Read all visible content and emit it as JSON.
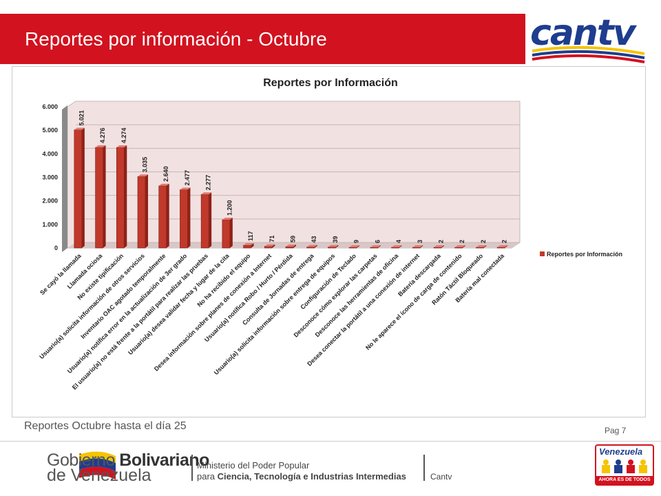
{
  "slide": {
    "title": "Reportes por información - Octubre",
    "footnote": "Reportes Octubre hasta el día 25",
    "page": "Pag 7"
  },
  "logo": {
    "text": "cantv"
  },
  "footer": {
    "gob_line1_a": "Gobierno ",
    "gob_line1_b": "Bolivariano",
    "gob_line2": "de Venezuela",
    "ministry_line1": "Ministerio del Poder Popular",
    "ministry_line2_a": "para ",
    "ministry_line2_b": "Ciencia, Tecnología e Industrias Intermedias",
    "cantv": "Cantv",
    "badge_top": "Venezuela",
    "badge_bottom": "AHORA ES DE TODOS"
  },
  "colors": {
    "brand_red": "#d2121f",
    "bar": "#c0392b",
    "plot_bg": "#f2e1e1"
  },
  "chart_data": {
    "type": "bar",
    "title": "Reportes por Información",
    "ylim": [
      0,
      6000
    ],
    "yticks": [
      "0",
      "1.000",
      "2.000",
      "3.000",
      "4.000",
      "5.000",
      "6.000"
    ],
    "legend": "right",
    "grid": true,
    "categories": [
      "Se cayó la llamada",
      "Llamada ociosa",
      "No existe tipificación",
      "Usuario(a) solicita información de otros servicios",
      "Inventario OAC agotado temporalmente",
      "Usuario(a) notifica error en la actualización de 3er grado",
      "El usuario(a) no está frente a la portátil para realizar las pruebas",
      "Usuario(a) desea validar fecha y lugar de la cita",
      "No ha recibido el equipo",
      "Desea información sobre planes de conexión a Internet",
      "Usuario(a) notifica Robo / Hurto / Pérdida",
      "Consulta de Jornadas de entrega",
      "Usuario(a) solicita información sobre entrega de equipos",
      "Configuración de Teclado",
      "Desconoce cómo explorar las carpetas",
      "Desconoce las herramientas de oficina",
      "Desea conectar la portátil a una conexión de internet",
      "Batería descargada",
      "No le aparece el ícono de carga de contenido",
      "Ratón Táctil Bloqueado",
      "Batería mal conectada"
    ],
    "series": [
      {
        "name": "Reportes por Información",
        "values": [
          5021,
          4276,
          4274,
          3035,
          2640,
          2477,
          2277,
          1200,
          117,
          71,
          59,
          43,
          39,
          9,
          6,
          4,
          3,
          2,
          2,
          2,
          2
        ],
        "labels": [
          "5.021",
          "4.276",
          "4.274",
          "3.035",
          "2.640",
          "2.477",
          "2.277",
          "1.200",
          "117",
          "71",
          "59",
          "43",
          "39",
          "9",
          "6",
          "4",
          "3",
          "2",
          "2",
          "2",
          "2"
        ]
      }
    ]
  }
}
